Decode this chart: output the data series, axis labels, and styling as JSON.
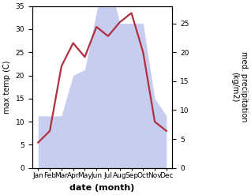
{
  "months": [
    "Jan",
    "Feb",
    "Mar",
    "Apr",
    "May",
    "Jun",
    "Jul",
    "Aug",
    "Sep",
    "Oct",
    "Nov",
    "Dec"
  ],
  "precipitation": [
    9,
    9,
    9,
    16,
    17,
    27,
    33.5,
    25,
    25,
    25,
    12,
    9
  ],
  "temp_line": [
    5.5,
    8,
    22,
    27,
    24,
    30.5,
    28.5,
    31.5,
    33.5,
    25,
    10,
    8
  ],
  "temp_ylim": [
    0,
    35
  ],
  "precip_ylim": [
    0,
    28
  ],
  "fill_color": "#b0b8e8",
  "fill_alpha": 0.7,
  "line_color": "#b03040",
  "ylabel_left": "max temp (C)",
  "ylabel_right": "med. precipitation\n(kg/m2)",
  "xlabel": "date (month)",
  "left_ticks": [
    0,
    5,
    10,
    15,
    20,
    25,
    30,
    35
  ],
  "right_ticks": [
    0,
    5,
    10,
    15,
    20,
    25
  ],
  "background_color": "#ffffff",
  "line_width": 1.6,
  "label_fontsize": 7,
  "xlabel_fontsize": 8,
  "tick_fontsize": 6.5
}
